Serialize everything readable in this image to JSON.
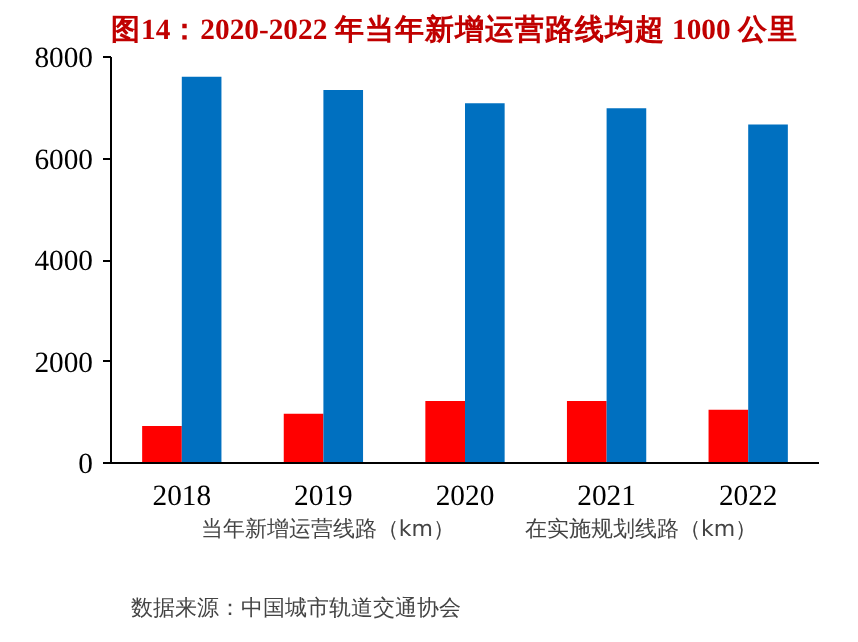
{
  "chart_data": {
    "type": "bar",
    "title": "图14：2020-2022 年当年新增运营路线均超 1000 公里",
    "categories": [
      "2018",
      "2019",
      "2020",
      "2021",
      "2022"
    ],
    "series": [
      {
        "name": "当年新增运营线路（km）",
        "color": "#ff0000",
        "values": [
          730,
          970,
          1220,
          1220,
          1050
        ]
      },
      {
        "name": "在实施规划线路（km）",
        "color": "#0070c0",
        "values": [
          7610,
          7350,
          7090,
          6990,
          6670
        ]
      }
    ],
    "ylim": [
      0,
      8000
    ],
    "yticks": [
      0,
      2000,
      4000,
      6000,
      8000
    ],
    "grid": false,
    "legend": "bottom",
    "annotations": [
      "数据来源：中国城市轨道交通协会"
    ]
  }
}
